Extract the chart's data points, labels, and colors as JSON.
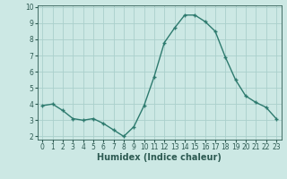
{
  "x": [
    0,
    1,
    2,
    3,
    4,
    5,
    6,
    7,
    8,
    9,
    10,
    11,
    12,
    13,
    14,
    15,
    16,
    17,
    18,
    19,
    20,
    21,
    22,
    23
  ],
  "y": [
    3.9,
    4.0,
    3.6,
    3.1,
    3.0,
    3.1,
    2.8,
    2.4,
    2.0,
    2.6,
    3.9,
    5.7,
    7.8,
    8.7,
    9.5,
    9.5,
    9.1,
    8.5,
    6.9,
    5.5,
    4.5,
    4.1,
    3.8,
    3.1
  ],
  "line_color": "#2d7a6e",
  "marker": "+",
  "bg_color": "#cce8e4",
  "grid_color": "#aad0cc",
  "axis_label_color": "#2d5a52",
  "tick_color": "#2d5a52",
  "xlabel": "Humidex (Indice chaleur)",
  "ylim": [
    1.8,
    10.1
  ],
  "xlim": [
    -0.5,
    23.5
  ],
  "yticks": [
    2,
    3,
    4,
    5,
    6,
    7,
    8,
    9,
    10
  ],
  "xticks": [
    0,
    1,
    2,
    3,
    4,
    5,
    6,
    7,
    8,
    9,
    10,
    11,
    12,
    13,
    14,
    15,
    16,
    17,
    18,
    19,
    20,
    21,
    22,
    23
  ],
  "tick_label_fontsize": 5.5,
  "xlabel_fontsize": 7.0,
  "linewidth": 1.0,
  "markersize": 3.5,
  "markeredgewidth": 1.0
}
